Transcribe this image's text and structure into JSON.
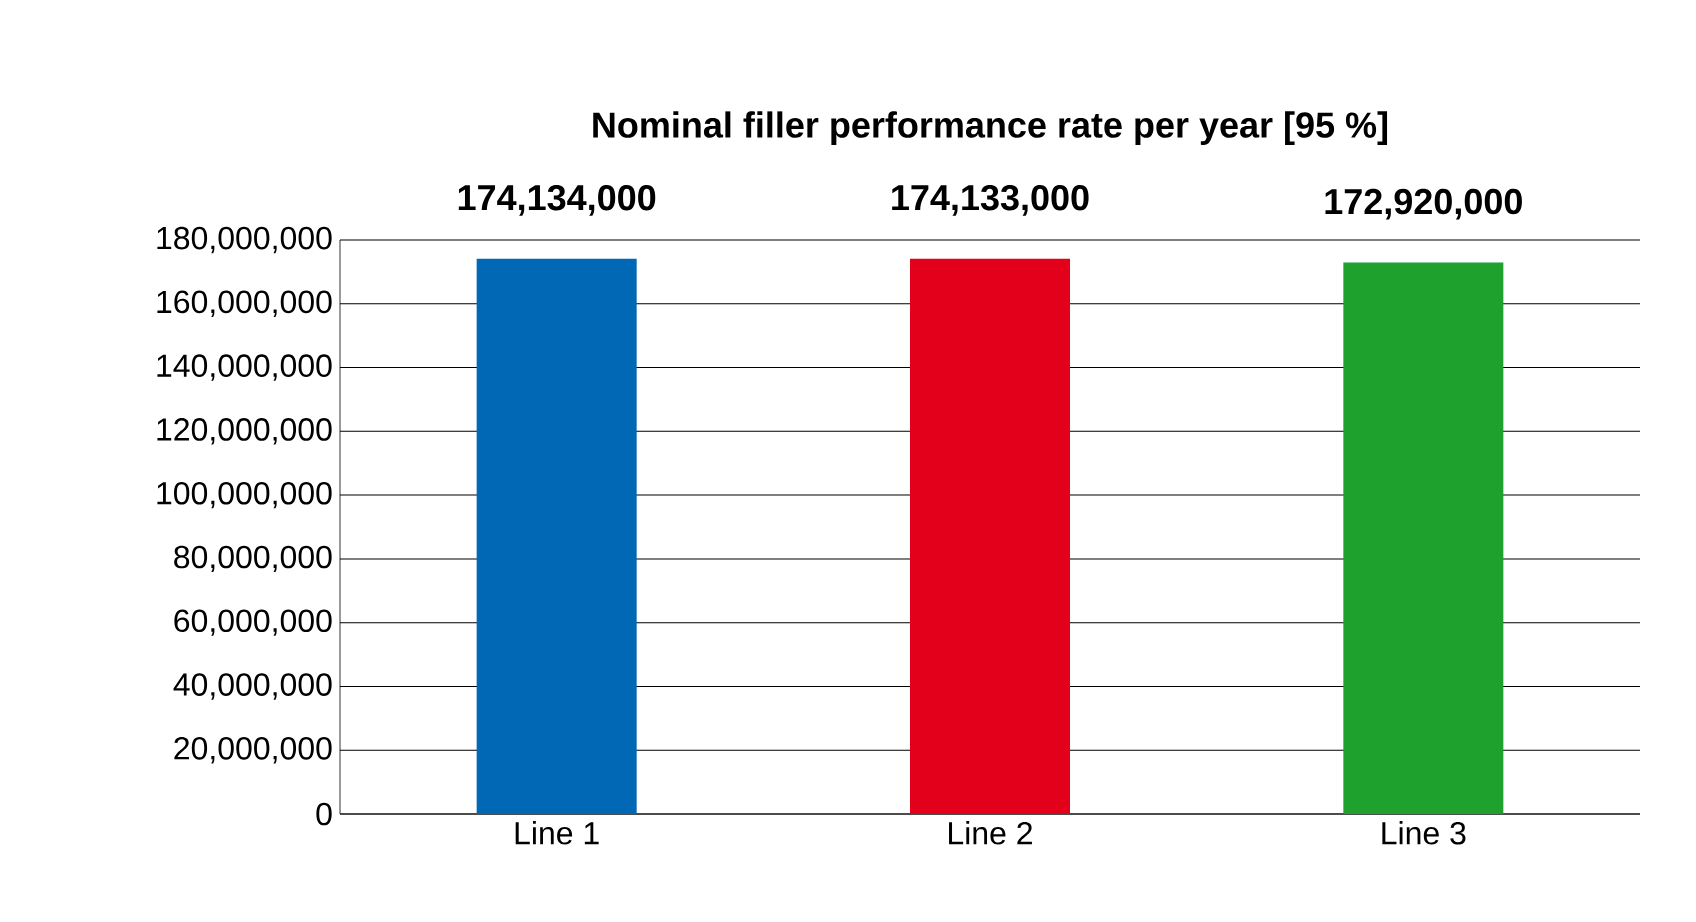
{
  "chart_data": {
    "type": "bar",
    "title": "Nominal filler performance rate per year [95 %]",
    "categories": [
      "Line 1",
      "Line 2",
      "Line 3"
    ],
    "values": [
      174134000,
      174133000,
      172920000
    ],
    "colors": [
      "#0068b4",
      "#e2001a",
      "#1fa12e"
    ],
    "value_labels": [
      "174,134,000",
      "174,133,000",
      "172,920,000"
    ],
    "ylim": [
      0,
      180000000
    ],
    "yticks": [
      {
        "value": 0,
        "label": "0"
      },
      {
        "value": 20000000,
        "label": "20,000,000"
      },
      {
        "value": 40000000,
        "label": "40,000,000"
      },
      {
        "value": 60000000,
        "label": "60,000,000"
      },
      {
        "value": 80000000,
        "label": "80,000,000"
      },
      {
        "value": 100000000,
        "label": "100,000,000"
      },
      {
        "value": 120000000,
        "label": "120,000,000"
      },
      {
        "value": 140000000,
        "label": "140,000,000"
      },
      {
        "value": 160000000,
        "label": "160,000,000"
      },
      {
        "value": 180000000,
        "label": "180,000,000"
      }
    ],
    "grid": "y"
  }
}
